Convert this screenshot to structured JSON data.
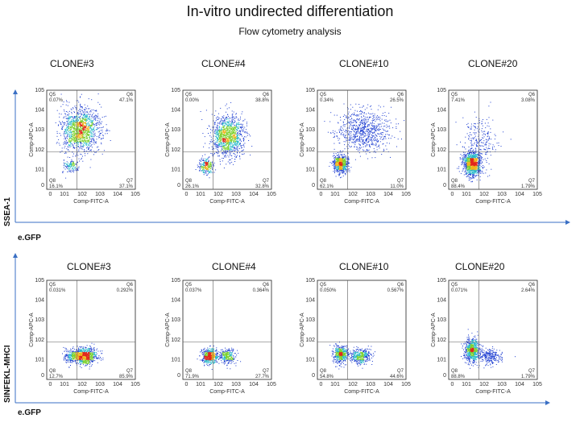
{
  "title": "In-vitro undirected differentiation",
  "subtitle": "Flow cytometry analysis",
  "axes": {
    "top_y_title": "SSEA-1",
    "top_x_title": "e.GFP",
    "bottom_y_title": "SINFEKL-MHCI",
    "bottom_x_title": "e.GFP"
  },
  "panel_axis_labels": {
    "x": "Comp-FITC-A",
    "y": "Comp-APC-A"
  },
  "colors": {
    "arrow": "#3a6fc4",
    "gate_line": "#5a5a5a",
    "frame": "#222222"
  },
  "chart_data": [
    {
      "type": "scatter",
      "row": "top",
      "title": "CLONE#3",
      "quadrants": {
        "Q5": "0.07%",
        "Q6": "47.1%",
        "Q8": "16.1%",
        "Q7": "37.1%"
      },
      "clusters": [
        {
          "x": 1.9,
          "y": 3.0,
          "sx": 0.55,
          "sy": 0.55,
          "n": 1400
        },
        {
          "x": 1.3,
          "y": 1.2,
          "sx": 0.2,
          "sy": 0.18,
          "n": 130
        }
      ]
    },
    {
      "type": "scatter",
      "row": "top",
      "title": "CLONE#4",
      "quadrants": {
        "Q5": "0.00%",
        "Q6": "38.8%",
        "Q8": "26.1%",
        "Q7": "32.8%"
      },
      "clusters": [
        {
          "x": 2.5,
          "y": 2.7,
          "sx": 0.45,
          "sy": 0.5,
          "n": 1200
        },
        {
          "x": 1.3,
          "y": 1.2,
          "sx": 0.2,
          "sy": 0.18,
          "n": 260
        }
      ]
    },
    {
      "type": "scatter",
      "row": "top",
      "title": "CLONE#10",
      "quadrants": {
        "Q5": "0.34%",
        "Q6": "26.5%",
        "Q8": "62.1%",
        "Q7": "11.0%"
      },
      "clusters": [
        {
          "x": 2.6,
          "y": 3.0,
          "sx": 0.75,
          "sy": 0.55,
          "n": 800
        },
        {
          "x": 1.3,
          "y": 1.3,
          "sx": 0.2,
          "sy": 0.22,
          "n": 700
        }
      ]
    },
    {
      "type": "scatter",
      "row": "top",
      "title": "CLONE#20",
      "quadrants": {
        "Q5": "7.41%",
        "Q6": "3.08%",
        "Q8": "88.4%",
        "Q7": "1.79%"
      },
      "clusters": [
        {
          "x": 1.3,
          "y": 1.3,
          "sx": 0.24,
          "sy": 0.3,
          "n": 1100
        },
        {
          "x": 1.8,
          "y": 2.4,
          "sx": 0.5,
          "sy": 0.6,
          "n": 250
        }
      ]
    },
    {
      "type": "scatter",
      "row": "bottom",
      "title": "CLONE#3",
      "quadrants": {
        "Q5": "0.031%",
        "Q6": "0.292%",
        "Q8": "12.7%",
        "Q7": "85.9%"
      },
      "clusters": [
        {
          "x": 2.1,
          "y": 1.2,
          "sx": 0.35,
          "sy": 0.2,
          "n": 900
        },
        {
          "x": 1.3,
          "y": 1.2,
          "sx": 0.2,
          "sy": 0.18,
          "n": 150
        }
      ]
    },
    {
      "type": "scatter",
      "row": "bottom",
      "title": "CLONE#4",
      "quadrants": {
        "Q5": "0.037%",
        "Q6": "0.364%",
        "Q8": "71.9%",
        "Q7": "27.7%"
      },
      "clusters": [
        {
          "x": 1.5,
          "y": 1.2,
          "sx": 0.22,
          "sy": 0.2,
          "n": 500
        },
        {
          "x": 2.5,
          "y": 1.2,
          "sx": 0.25,
          "sy": 0.2,
          "n": 300
        }
      ]
    },
    {
      "type": "scatter",
      "row": "bottom",
      "title": "CLONE#10",
      "quadrants": {
        "Q5": "0.050%",
        "Q6": "0.567%",
        "Q8": "54.8%",
        "Q7": "44.6%"
      },
      "clusters": [
        {
          "x": 1.3,
          "y": 1.3,
          "sx": 0.2,
          "sy": 0.22,
          "n": 500
        },
        {
          "x": 2.4,
          "y": 1.2,
          "sx": 0.3,
          "sy": 0.2,
          "n": 400
        }
      ]
    },
    {
      "type": "scatter",
      "row": "bottom",
      "title": "CLONE#20",
      "quadrants": {
        "Q5": "0.071%",
        "Q6": "2.64%",
        "Q8": "88.8%",
        "Q7": "1.79%"
      },
      "clusters": [
        {
          "x": 1.3,
          "y": 1.5,
          "sx": 0.2,
          "sy": 0.3,
          "n": 700
        },
        {
          "x": 2.3,
          "y": 1.2,
          "sx": 0.35,
          "sy": 0.2,
          "n": 250
        }
      ]
    }
  ]
}
